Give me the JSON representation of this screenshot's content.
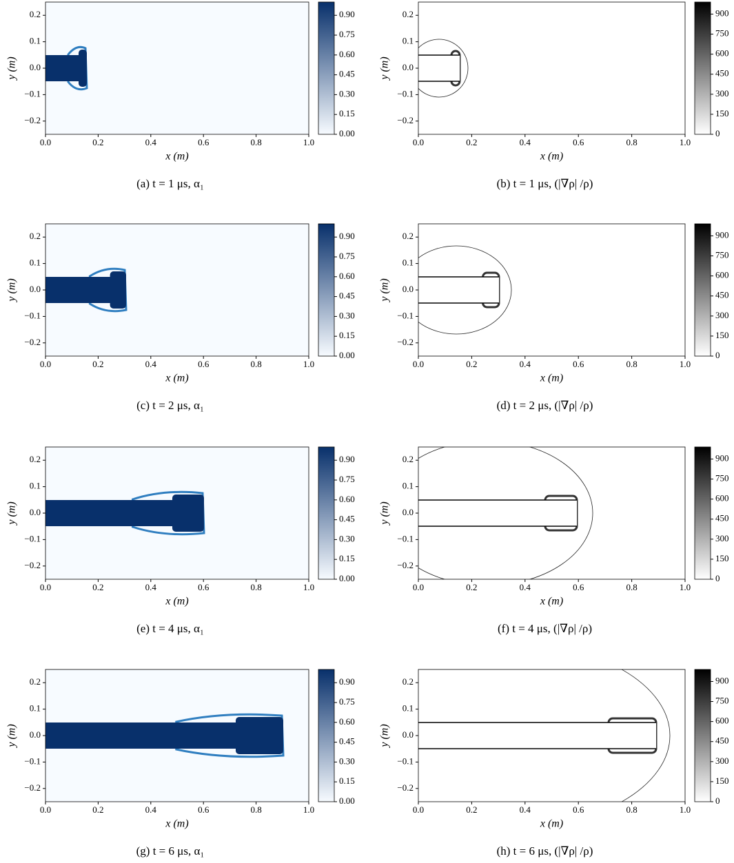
{
  "chart_data": [
    {
      "type": "field",
      "caption": "(a) t = 1 μs, α₁",
      "xlabel": "x (m)",
      "ylabel": "y (m)",
      "xlim": [
        0,
        1
      ],
      "ylim": [
        -0.25,
        0.25
      ],
      "xticks": [
        {
          "value": 0,
          "label": "0.0"
        },
        {
          "value": 0.2,
          "label": "0.2"
        },
        {
          "value": 0.4,
          "label": "0.4"
        },
        {
          "value": 0.6,
          "label": "0.6"
        },
        {
          "value": 0.8,
          "label": "0.8"
        },
        {
          "value": 1,
          "label": "1.0"
        }
      ],
      "yticks": [
        {
          "value": -0.2,
          "label": "−0.2"
        },
        {
          "value": -0.1,
          "label": "−0.1"
        },
        {
          "value": 0,
          "label": "0.0"
        },
        {
          "value": 0.1,
          "label": "0.1"
        },
        {
          "value": 0.2,
          "label": "0.2"
        }
      ],
      "colorbar": {
        "lim": [
          0,
          1
        ],
        "colors": [
          "#f7fbff",
          "#08306b"
        ],
        "ticks": [
          {
            "value": 0,
            "label": "0.00"
          },
          {
            "value": 0.15,
            "label": "0.15"
          },
          {
            "value": 0.3,
            "label": "0.30"
          },
          {
            "value": 0.45,
            "label": "0.45"
          },
          {
            "value": 0.6,
            "label": "0.60"
          },
          {
            "value": 0.75,
            "label": "0.75"
          },
          {
            "value": 0.9,
            "label": "0.90"
          }
        ]
      }
    },
    {
      "type": "gradient",
      "caption": "(b) t = 1 μs, (|∇ρ| /ρ)",
      "xlabel": "x (m)",
      "ylabel": "y (m)",
      "xlim": [
        0,
        1
      ],
      "ylim": [
        -0.25,
        0.25
      ],
      "xticks": [
        {
          "value": 0,
          "label": "0.0"
        },
        {
          "value": 0.2,
          "label": "0.2"
        },
        {
          "value": 0.4,
          "label": "0.4"
        },
        {
          "value": 0.6,
          "label": "0.6"
        },
        {
          "value": 0.8,
          "label": "0.8"
        },
        {
          "value": 1,
          "label": "1.0"
        }
      ],
      "yticks": [
        {
          "value": -0.2,
          "label": "−0.2"
        },
        {
          "value": -0.1,
          "label": "−0.1"
        },
        {
          "value": 0,
          "label": "0.0"
        },
        {
          "value": 0.1,
          "label": "0.1"
        },
        {
          "value": 0.2,
          "label": "0.2"
        }
      ],
      "colorbar": {
        "lim": [
          0,
          990
        ],
        "colors": [
          "#ffffff",
          "#000000"
        ],
        "ticks": [
          0,
          150,
          300,
          450,
          600,
          750,
          900
        ]
      }
    },
    {
      "type": "field",
      "caption": "(c) t = 2 μs, α₁",
      "xlabel": "x (m)",
      "ylabel": "y (m)",
      "xlim": [
        0,
        1
      ],
      "ylim": [
        -0.25,
        0.25
      ],
      "xticks": [
        {
          "value": 0,
          "label": "0.0"
        },
        {
          "value": 0.2,
          "label": "0.2"
        },
        {
          "value": 0.4,
          "label": "0.4"
        },
        {
          "value": 0.6,
          "label": "0.6"
        },
        {
          "value": 0.8,
          "label": "0.8"
        },
        {
          "value": 1,
          "label": "1.0"
        }
      ],
      "yticks": [
        {
          "value": -0.2,
          "label": "−0.2"
        },
        {
          "value": -0.1,
          "label": "−0.1"
        },
        {
          "value": 0,
          "label": "0.0"
        },
        {
          "value": 0.1,
          "label": "0.1"
        },
        {
          "value": 0.2,
          "label": "0.2"
        }
      ],
      "colorbar": {
        "lim": [
          0,
          1
        ],
        "colors": [
          "#f7fbff",
          "#08306b"
        ],
        "ticks": [
          {
            "value": 0,
            "label": "0.00"
          },
          {
            "value": 0.15,
            "label": "0.15"
          },
          {
            "value": 0.3,
            "label": "0.30"
          },
          {
            "value": 0.45,
            "label": "0.45"
          },
          {
            "value": 0.6,
            "label": "0.60"
          },
          {
            "value": 0.75,
            "label": "0.75"
          },
          {
            "value": 0.9,
            "label": "0.90"
          }
        ]
      }
    },
    {
      "type": "gradient",
      "caption": "(d) t = 2 μs, (|∇ρ| /ρ)",
      "xlabel": "x (m)",
      "ylabel": "y (m)",
      "xlim": [
        0,
        1
      ],
      "ylim": [
        -0.25,
        0.25
      ],
      "xticks": [
        {
          "value": 0,
          "label": "0.0"
        },
        {
          "value": 0.2,
          "label": "0.2"
        },
        {
          "value": 0.4,
          "label": "0.4"
        },
        {
          "value": 0.6,
          "label": "0.6"
        },
        {
          "value": 0.8,
          "label": "0.8"
        },
        {
          "value": 1,
          "label": "1.0"
        }
      ],
      "yticks": [
        {
          "value": -0.2,
          "label": "−0.2"
        },
        {
          "value": -0.1,
          "label": "−0.1"
        },
        {
          "value": 0,
          "label": "0.0"
        },
        {
          "value": 0.1,
          "label": "0.1"
        },
        {
          "value": 0.2,
          "label": "0.2"
        }
      ],
      "colorbar": {
        "lim": [
          0,
          990
        ],
        "colors": [
          "#ffffff",
          "#000000"
        ],
        "ticks": [
          0,
          150,
          300,
          450,
          600,
          750,
          900
        ]
      }
    },
    {
      "type": "field",
      "caption": "(e) t = 4 μs, α₁",
      "xlabel": "x (m)",
      "ylabel": "y (m)",
      "xlim": [
        0,
        1
      ],
      "ylim": [
        -0.25,
        0.25
      ],
      "xticks": [
        {
          "value": 0,
          "label": "0.0"
        },
        {
          "value": 0.2,
          "label": "0.2"
        },
        {
          "value": 0.4,
          "label": "0.4"
        },
        {
          "value": 0.6,
          "label": "0.6"
        },
        {
          "value": 0.8,
          "label": "0.8"
        },
        {
          "value": 1,
          "label": "1.0"
        }
      ],
      "yticks": [
        {
          "value": -0.2,
          "label": "−0.2"
        },
        {
          "value": -0.1,
          "label": "−0.1"
        },
        {
          "value": 0,
          "label": "0.0"
        },
        {
          "value": 0.1,
          "label": "0.1"
        },
        {
          "value": 0.2,
          "label": "0.2"
        }
      ],
      "colorbar": {
        "lim": [
          0,
          1
        ],
        "colors": [
          "#f7fbff",
          "#08306b"
        ],
        "ticks": [
          {
            "value": 0,
            "label": "0.00"
          },
          {
            "value": 0.15,
            "label": "0.15"
          },
          {
            "value": 0.3,
            "label": "0.30"
          },
          {
            "value": 0.45,
            "label": "0.45"
          },
          {
            "value": 0.6,
            "label": "0.60"
          },
          {
            "value": 0.75,
            "label": "0.75"
          },
          {
            "value": 0.9,
            "label": "0.90"
          }
        ]
      }
    },
    {
      "type": "gradient",
      "caption": "(f) t = 4 μs, (|∇ρ| /ρ)",
      "xlabel": "x (m)",
      "ylabel": "y (m)",
      "xlim": [
        0,
        1
      ],
      "ylim": [
        -0.25,
        0.25
      ],
      "xticks": [
        {
          "value": 0,
          "label": "0.0"
        },
        {
          "value": 0.2,
          "label": "0.2"
        },
        {
          "value": 0.4,
          "label": "0.4"
        },
        {
          "value": 0.6,
          "label": "0.6"
        },
        {
          "value": 0.8,
          "label": "0.8"
        },
        {
          "value": 1,
          "label": "1.0"
        }
      ],
      "yticks": [
        {
          "value": -0.2,
          "label": "−0.2"
        },
        {
          "value": -0.1,
          "label": "−0.1"
        },
        {
          "value": 0,
          "label": "0.0"
        },
        {
          "value": 0.1,
          "label": "0.1"
        },
        {
          "value": 0.2,
          "label": "0.2"
        }
      ],
      "colorbar": {
        "lim": [
          0,
          990
        ],
        "colors": [
          "#ffffff",
          "#000000"
        ],
        "ticks": [
          0,
          150,
          300,
          450,
          600,
          750,
          900
        ]
      }
    },
    {
      "type": "field",
      "caption": "(g) t = 6 μs, α₁",
      "xlabel": "x (m)",
      "ylabel": "y (m)",
      "xlim": [
        0,
        1
      ],
      "ylim": [
        -0.25,
        0.25
      ],
      "xticks": [
        {
          "value": 0,
          "label": "0.0"
        },
        {
          "value": 0.2,
          "label": "0.2"
        },
        {
          "value": 0.4,
          "label": "0.4"
        },
        {
          "value": 0.6,
          "label": "0.6"
        },
        {
          "value": 0.8,
          "label": "0.8"
        },
        {
          "value": 1,
          "label": "1.0"
        }
      ],
      "yticks": [
        {
          "value": -0.2,
          "label": "−0.2"
        },
        {
          "value": -0.1,
          "label": "−0.1"
        },
        {
          "value": 0,
          "label": "0.0"
        },
        {
          "value": 0.1,
          "label": "0.1"
        },
        {
          "value": 0.2,
          "label": "0.2"
        }
      ],
      "colorbar": {
        "lim": [
          0,
          1
        ],
        "colors": [
          "#f7fbff",
          "#08306b"
        ],
        "ticks": [
          {
            "value": 0,
            "label": "0.00"
          },
          {
            "value": 0.15,
            "label": "0.15"
          },
          {
            "value": 0.3,
            "label": "0.30"
          },
          {
            "value": 0.45,
            "label": "0.45"
          },
          {
            "value": 0.6,
            "label": "0.60"
          },
          {
            "value": 0.75,
            "label": "0.75"
          },
          {
            "value": 0.9,
            "label": "0.90"
          }
        ]
      }
    },
    {
      "type": "gradient",
      "caption": "(h) t = 6 μs, (|∇ρ| /ρ)",
      "xlabel": "x (m)",
      "ylabel": "y (m)",
      "xlim": [
        0,
        1
      ],
      "ylim": [
        -0.25,
        0.25
      ],
      "xticks": [
        {
          "value": 0,
          "label": "0.0"
        },
        {
          "value": 0.2,
          "label": "0.2"
        },
        {
          "value": 0.4,
          "label": "0.4"
        },
        {
          "value": 0.6,
          "label": "0.6"
        },
        {
          "value": 0.8,
          "label": "0.8"
        },
        {
          "value": 1,
          "label": "1.0"
        }
      ],
      "yticks": [
        {
          "value": -0.2,
          "label": "−0.2"
        },
        {
          "value": -0.1,
          "label": "−0.1"
        },
        {
          "value": 0,
          "label": "0.0"
        },
        {
          "value": 0.1,
          "label": "0.1"
        },
        {
          "value": 0.2,
          "label": "0.2"
        }
      ],
      "colorbar": {
        "lim": [
          0,
          990
        ],
        "colors": [
          "#ffffff",
          "#000000"
        ],
        "ticks": [
          0,
          150,
          300,
          450,
          600,
          750,
          900
        ]
      }
    }
  ]
}
